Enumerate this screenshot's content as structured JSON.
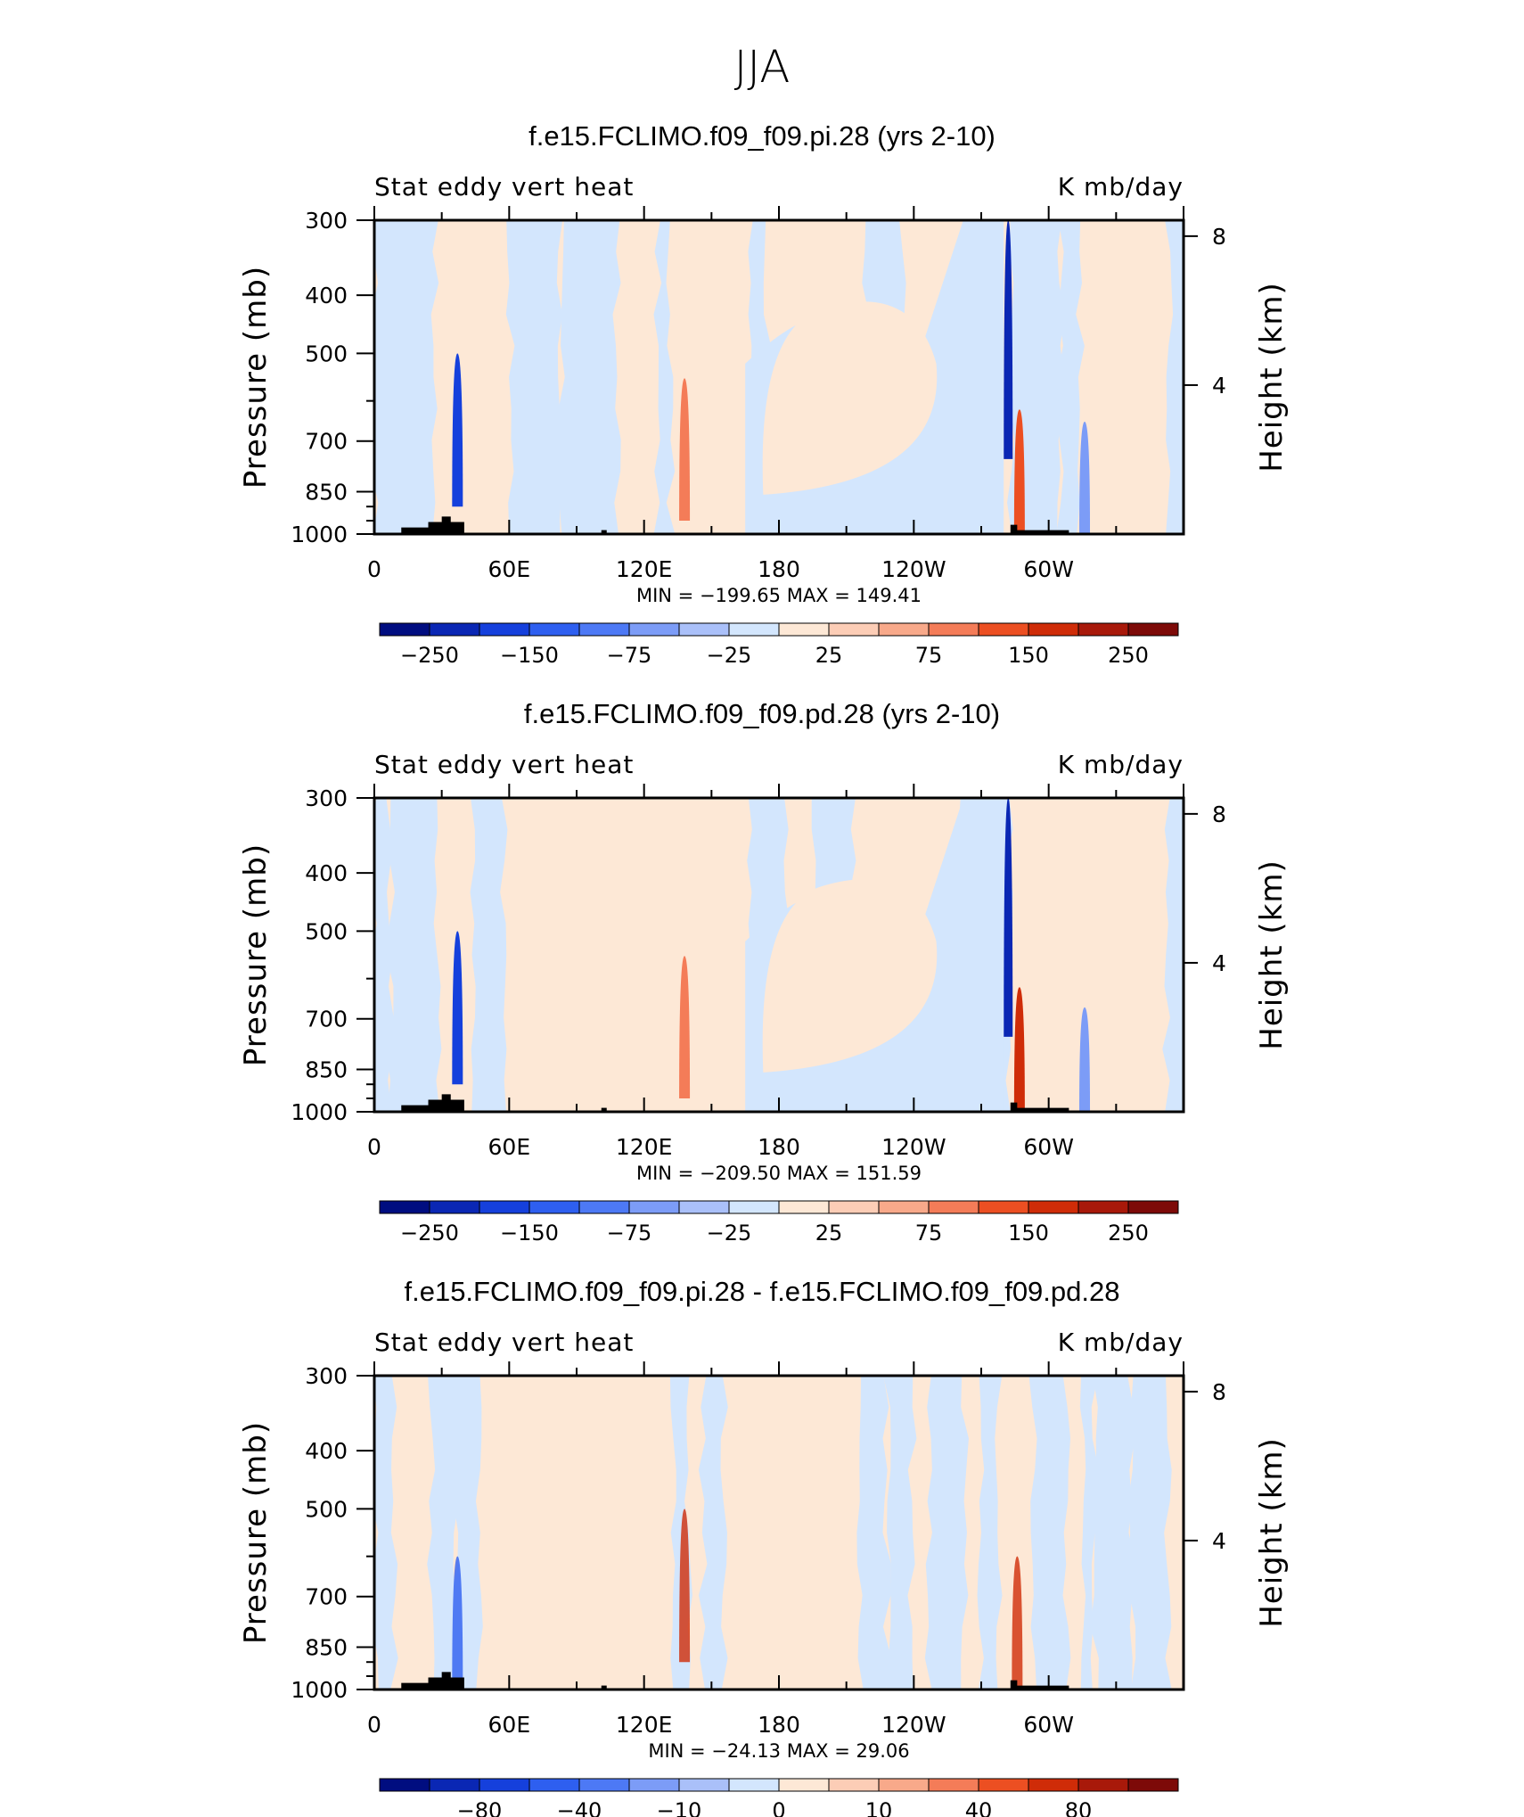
{
  "figure": {
    "title": "JJA"
  },
  "colors": {
    "palette": [
      "#000d80",
      "#0a27b4",
      "#1540dc",
      "#2e5ff0",
      "#4d79f5",
      "#7c9cf7",
      "#aac0f9",
      "#d3e6fd",
      "#fde8d6",
      "#fccdb6",
      "#f8a98a",
      "#f47c58",
      "#ec4f22",
      "#cf2c08",
      "#a8190a",
      "#7d0a08"
    ],
    "mask": "#000000"
  },
  "chart_data": [
    {
      "type": "heatmap",
      "title": "f.e15.FCLIMO.f09_f09.pi.28 (yrs 2-10)",
      "left_label": "Stat eddy vert heat",
      "right_label": "K mb/day",
      "ylabel": "Pressure (mb)",
      "y2label": "Height (km)",
      "xticks": [
        "0",
        "60E",
        "120E",
        "180",
        "120W",
        "60W"
      ],
      "yticks": [
        "300",
        "400",
        "500",
        "700",
        "850",
        "1000"
      ],
      "y2ticks": [
        "8",
        "4"
      ],
      "xlim": [
        0,
        360
      ],
      "ylim": [
        1000,
        300
      ],
      "stats": "MIN = −199.65   MAX = 149.41",
      "colorbar_labels": [
        "−250",
        "−150",
        "−75",
        "−25",
        "25",
        "75",
        "150",
        "250"
      ],
      "features": [
        {
          "lon": 37,
          "p": 750,
          "value": -150
        },
        {
          "lon": 282,
          "p": 600,
          "value": -190
        },
        {
          "lon": 138,
          "p": 800,
          "value": 80
        },
        {
          "lon": 287,
          "p": 870,
          "value": 140
        },
        {
          "lon": 316,
          "p": 900,
          "value": -60
        }
      ]
    },
    {
      "type": "heatmap",
      "title": "f.e15.FCLIMO.f09_f09.pd.28 (yrs 2-10)",
      "left_label": "Stat eddy vert heat",
      "right_label": "K mb/day",
      "ylabel": "Pressure (mb)",
      "y2label": "Height (km)",
      "xticks": [
        "0",
        "60E",
        "120E",
        "180",
        "120W",
        "60W"
      ],
      "yticks": [
        "300",
        "400",
        "500",
        "700",
        "850",
        "1000"
      ],
      "y2ticks": [
        "8",
        "4"
      ],
      "xlim": [
        0,
        360
      ],
      "ylim": [
        1000,
        300
      ],
      "stats": "MIN = −209.50   MAX = 151.59",
      "colorbar_labels": [
        "−250",
        "−150",
        "−75",
        "−25",
        "25",
        "75",
        "150",
        "250"
      ],
      "features": [
        {
          "lon": 37,
          "p": 750,
          "value": -155
        },
        {
          "lon": 282,
          "p": 600,
          "value": -200
        },
        {
          "lon": 138,
          "p": 800,
          "value": 80
        },
        {
          "lon": 287,
          "p": 870,
          "value": 145
        },
        {
          "lon": 316,
          "p": 920,
          "value": -70
        }
      ]
    },
    {
      "type": "heatmap",
      "title": "f.e15.FCLIMO.f09_f09.pi.28 - f.e15.FCLIMO.f09_f09.pd.28",
      "left_label": "Stat eddy vert heat",
      "right_label": "K mb/day",
      "ylabel": "Pressure (mb)",
      "y2label": "Height (km)",
      "xticks": [
        "0",
        "60E",
        "120E",
        "180",
        "120W",
        "60W"
      ],
      "yticks": [
        "300",
        "400",
        "500",
        "700",
        "850",
        "1000"
      ],
      "y2ticks": [
        "8",
        "4"
      ],
      "xlim": [
        0,
        360
      ],
      "ylim": [
        1000,
        300
      ],
      "stats": "MIN = −24.13   MAX =   29.06",
      "colorbar_labels": [
        "−80",
        "−40",
        "−10",
        "0",
        "10",
        "40",
        "80"
      ],
      "features": [
        {
          "lon": 138,
          "p": 750,
          "value": 20
        },
        {
          "lon": 286,
          "p": 850,
          "value": 20
        },
        {
          "lon": 37,
          "p": 850,
          "value": -15
        }
      ]
    }
  ]
}
